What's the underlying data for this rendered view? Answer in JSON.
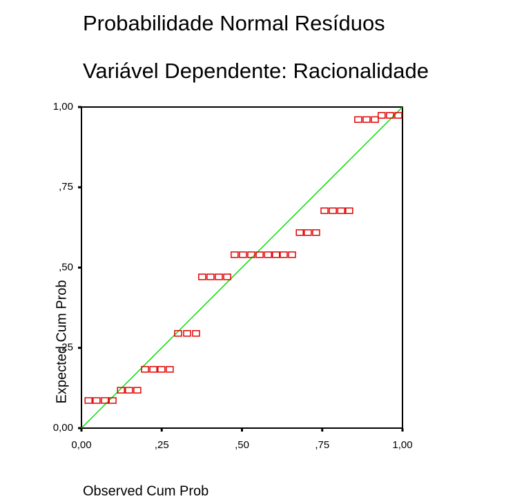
{
  "chart_data": {
    "type": "scatter",
    "title": "Probabilidade Normal Resíduos",
    "subtitle": "Variável Dependente: Racionalidade",
    "x_label": "Observed Cum Prob",
    "y_label": "Expected Cum Prob",
    "series": [
      {
        "name": "Resíduos",
        "color": "#e00000",
        "x": [
          0.022,
          0.047,
          0.073,
          0.097,
          0.123,
          0.148,
          0.174,
          0.198,
          0.224,
          0.249,
          0.275,
          0.301,
          0.329,
          0.357,
          0.376,
          0.402,
          0.428,
          0.454,
          0.477,
          0.503,
          0.529,
          0.555,
          0.581,
          0.606,
          0.63,
          0.656,
          0.68,
          0.705,
          0.731,
          0.757,
          0.783,
          0.809,
          0.834,
          0.862,
          0.888,
          0.914,
          0.935,
          0.961,
          0.987
        ],
        "values": [
          0.086,
          0.086,
          0.086,
          0.086,
          0.118,
          0.118,
          0.118,
          0.183,
          0.183,
          0.183,
          0.183,
          0.295,
          0.295,
          0.295,
          0.471,
          0.471,
          0.471,
          0.471,
          0.54,
          0.54,
          0.54,
          0.54,
          0.54,
          0.54,
          0.54,
          0.54,
          0.609,
          0.609,
          0.609,
          0.677,
          0.677,
          0.677,
          0.677,
          0.961,
          0.961,
          0.961,
          0.974,
          0.974,
          0.974
        ]
      }
    ],
    "reference_line_color": "#00dd00",
    "xlim": [
      0,
      1
    ],
    "ylim": [
      0,
      1
    ],
    "xticks": [
      {
        "value": 0,
        "label": "0,00"
      },
      {
        "value": 0.25,
        "label": ",25"
      },
      {
        "value": 0.5,
        "label": ",50"
      },
      {
        "value": 0.75,
        "label": ",75"
      },
      {
        "value": 1,
        "label": "1,00"
      }
    ],
    "yticks": [
      {
        "value": 0,
        "label": "0,00"
      },
      {
        "value": 0.25,
        "label": ",25"
      },
      {
        "value": 0.5,
        "label": ",50"
      },
      {
        "value": 0.75,
        "label": ",75"
      },
      {
        "value": 1,
        "label": "1,00"
      }
    ]
  }
}
